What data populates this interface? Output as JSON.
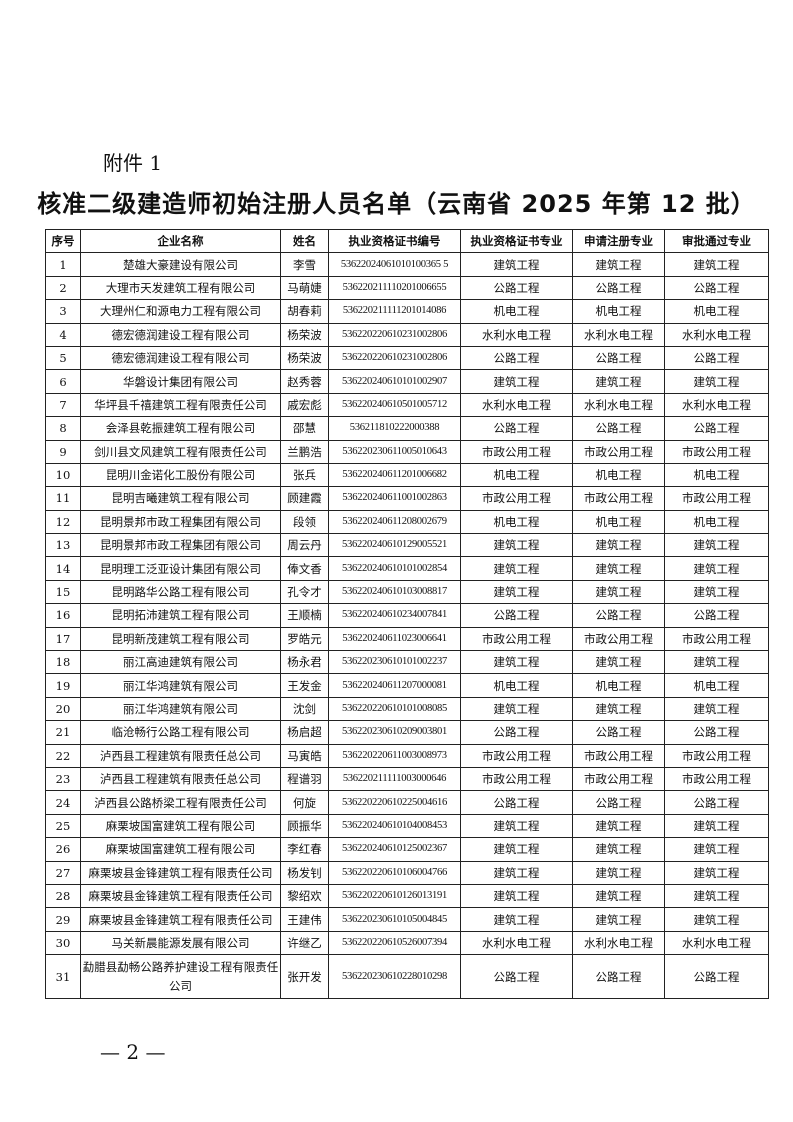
{
  "attachment_label": "附件 1",
  "title": "核准二级建造师初始注册人员名单（云南省 2025 年第 12 批）",
  "table": {
    "headers": [
      "序号",
      "企业名称",
      "姓名",
      "执业资格证书编号",
      "执业资格证书专业",
      "申请注册专业",
      "审批通过专业"
    ],
    "rows": [
      [
        "1",
        "楚雄大豪建设有限公司",
        "李雪",
        "53622024061010100365 5",
        "建筑工程",
        "建筑工程",
        "建筑工程"
      ],
      [
        "2",
        "大理市天发建筑工程有限公司",
        "马萌婕",
        "536220211110201006655",
        "公路工程",
        "公路工程",
        "公路工程"
      ],
      [
        "3",
        "大理州仁和源电力工程有限公司",
        "胡春莉",
        "536220211111201014086",
        "机电工程",
        "机电工程",
        "机电工程"
      ],
      [
        "4",
        "德宏德润建设工程有限公司",
        "杨荣波",
        "536220220610231002806",
        "水利水电工程",
        "水利水电工程",
        "水利水电工程"
      ],
      [
        "5",
        "德宏德润建设工程有限公司",
        "杨荣波",
        "536220220610231002806",
        "公路工程",
        "公路工程",
        "公路工程"
      ],
      [
        "6",
        "华磐设计集团有限公司",
        "赵秀蓉",
        "536220240610101002907",
        "建筑工程",
        "建筑工程",
        "建筑工程"
      ],
      [
        "7",
        "华坪县千禧建筑工程有限责任公司",
        "戚宏彪",
        "536220240610501005712",
        "水利水电工程",
        "水利水电工程",
        "水利水电工程"
      ],
      [
        "8",
        "会泽县乾振建筑工程有限公司",
        "邵慧",
        "536211810222000388",
        "公路工程",
        "公路工程",
        "公路工程"
      ],
      [
        "9",
        "剑川县文风建筑工程有限责任公司",
        "兰鹏浩",
        "536220230611005010643",
        "市政公用工程",
        "市政公用工程",
        "市政公用工程"
      ],
      [
        "10",
        "昆明川金诺化工股份有限公司",
        "张兵",
        "536220240611201006682",
        "机电工程",
        "机电工程",
        "机电工程"
      ],
      [
        "11",
        "昆明吉曦建筑工程有限公司",
        "顾建霞",
        "536220240611001002863",
        "市政公用工程",
        "市政公用工程",
        "市政公用工程"
      ],
      [
        "12",
        "昆明景邦市政工程集团有限公司",
        "段领",
        "536220240611208002679",
        "机电工程",
        "机电工程",
        "机电工程"
      ],
      [
        "13",
        "昆明景邦市政工程集团有限公司",
        "周云丹",
        "536220240610129005521",
        "建筑工程",
        "建筑工程",
        "建筑工程"
      ],
      [
        "14",
        "昆明理工泛亚设计集团有限公司",
        "俸文香",
        "536220240610101002854",
        "建筑工程",
        "建筑工程",
        "建筑工程"
      ],
      [
        "15",
        "昆明路华公路工程有限公司",
        "孔令才",
        "536220240610103008817",
        "建筑工程",
        "建筑工程",
        "建筑工程"
      ],
      [
        "16",
        "昆明拓沛建筑工程有限公司",
        "王顺楠",
        "536220240610234007841",
        "公路工程",
        "公路工程",
        "公路工程"
      ],
      [
        "17",
        "昆明新茂建筑工程有限公司",
        "罗皓元",
        "536220240611023006641",
        "市政公用工程",
        "市政公用工程",
        "市政公用工程"
      ],
      [
        "18",
        "丽江高迪建筑有限公司",
        "杨永君",
        "536220230610101002237",
        "建筑工程",
        "建筑工程",
        "建筑工程"
      ],
      [
        "19",
        "丽江华鸿建筑有限公司",
        "王发金",
        "536220240611207000081",
        "机电工程",
        "机电工程",
        "机电工程"
      ],
      [
        "20",
        "丽江华鸿建筑有限公司",
        "沈剑",
        "536220220610101008085",
        "建筑工程",
        "建筑工程",
        "建筑工程"
      ],
      [
        "21",
        "临沧畅行公路工程有限公司",
        "杨启超",
        "536220230610209003801",
        "公路工程",
        "公路工程",
        "公路工程"
      ],
      [
        "22",
        "泸西县工程建筑有限责任总公司",
        "马寅皓",
        "536220220611003008973",
        "市政公用工程",
        "市政公用工程",
        "市政公用工程"
      ],
      [
        "23",
        "泸西县工程建筑有限责任总公司",
        "程谱羽",
        "536220211111003000646",
        "市政公用工程",
        "市政公用工程",
        "市政公用工程"
      ],
      [
        "24",
        "泸西县公路桥梁工程有限责任公司",
        "何旋",
        "536220220610225004616",
        "公路工程",
        "公路工程",
        "公路工程"
      ],
      [
        "25",
        "麻栗坡国富建筑工程有限公司",
        "顾振华",
        "536220240610104008453",
        "建筑工程",
        "建筑工程",
        "建筑工程"
      ],
      [
        "26",
        "麻栗坡国富建筑工程有限公司",
        "李红春",
        "536220240610125002367",
        "建筑工程",
        "建筑工程",
        "建筑工程"
      ],
      [
        "27",
        "麻栗坡县金锋建筑工程有限责任公司",
        "杨发钊",
        "536220220610106004766",
        "建筑工程",
        "建筑工程",
        "建筑工程"
      ],
      [
        "28",
        "麻栗坡县金锋建筑工程有限责任公司",
        "黎绍欢",
        "536220220610126013191",
        "建筑工程",
        "建筑工程",
        "建筑工程"
      ],
      [
        "29",
        "麻栗坡县金锋建筑工程有限责任公司",
        "王建伟",
        "536220230610105004845",
        "建筑工程",
        "建筑工程",
        "建筑工程"
      ],
      [
        "30",
        "马关新晨能源发展有限公司",
        "许继乙",
        "536220220610526007394",
        "水利水电工程",
        "水利水电工程",
        "水利水电工程"
      ],
      [
        "31",
        "勐腊县勐畅公路养护建设工程有限责任公司",
        "张开发",
        "536220230610228010298",
        "公路工程",
        "公路工程",
        "公路工程"
      ]
    ]
  },
  "footer": "— 2 —"
}
